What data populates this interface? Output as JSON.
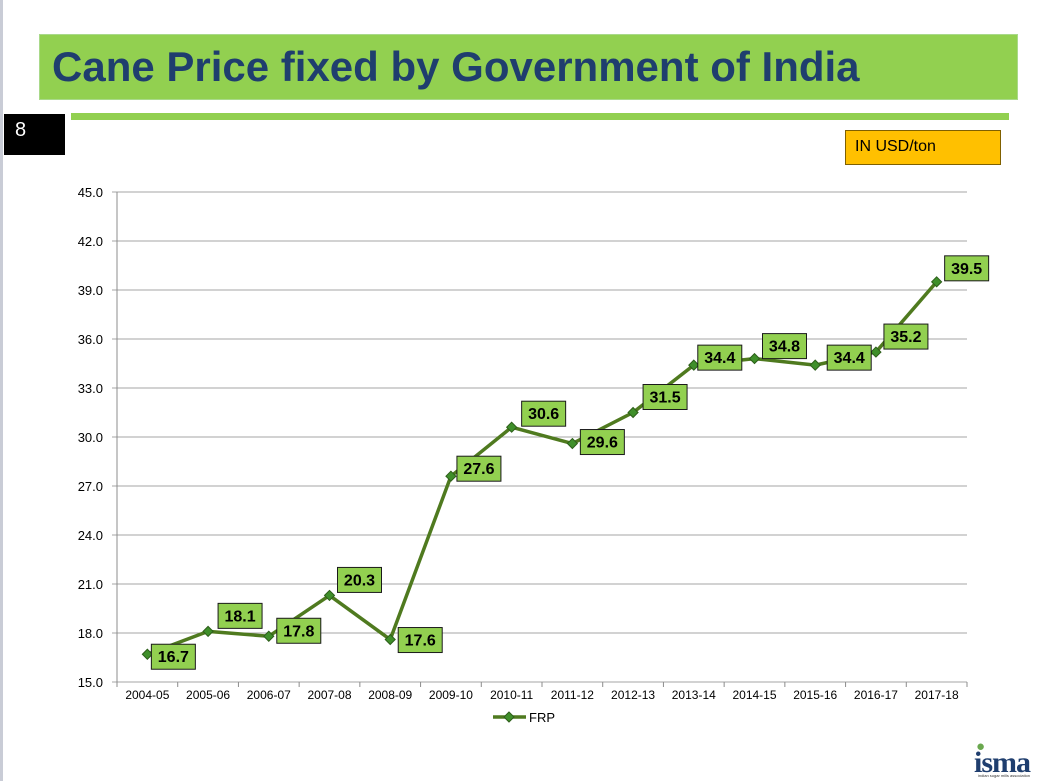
{
  "slide": {
    "title": "Cane Price fixed by Government of India",
    "number": "8",
    "unit_label": "IN USD/ton",
    "logo": "isma",
    "logo_subtitle": "indian sugar mills association"
  },
  "colors": {
    "title_bar": "#92d050",
    "title_text": "#1f3e6e",
    "line": "#4f7a1f",
    "marker": "#3f8f2a",
    "label_box": "#92d050",
    "unit_box": "#ffc000"
  },
  "chart_data": {
    "type": "line",
    "categories": [
      "2004-05",
      "2005-06",
      "2006-07",
      "2007-08",
      "2008-09",
      "2009-10",
      "2010-11",
      "2011-12",
      "2012-13",
      "2013-14",
      "2014-15",
      "2015-16",
      "2016-17",
      "2017-18"
    ],
    "series": [
      {
        "name": "FRP",
        "values": [
          16.7,
          18.1,
          17.8,
          20.3,
          17.6,
          27.6,
          30.6,
          29.6,
          31.5,
          34.4,
          34.8,
          34.4,
          35.2,
          39.5
        ]
      }
    ],
    "data_labels": [
      "16.7",
      "18.1",
      "17.8",
      "20.3",
      "17.6",
      "27.6",
      "30.6",
      "29.6",
      "31.5",
      "34.4",
      "34.8",
      "34.4",
      "35.2",
      "39.5"
    ],
    "y_ticks": [
      "15.0",
      "18.0",
      "21.0",
      "24.0",
      "27.0",
      "30.0",
      "33.0",
      "36.0",
      "39.0",
      "42.0",
      "45.0"
    ],
    "ylim": [
      15,
      45
    ],
    "grid": true,
    "legend": "bottom"
  }
}
